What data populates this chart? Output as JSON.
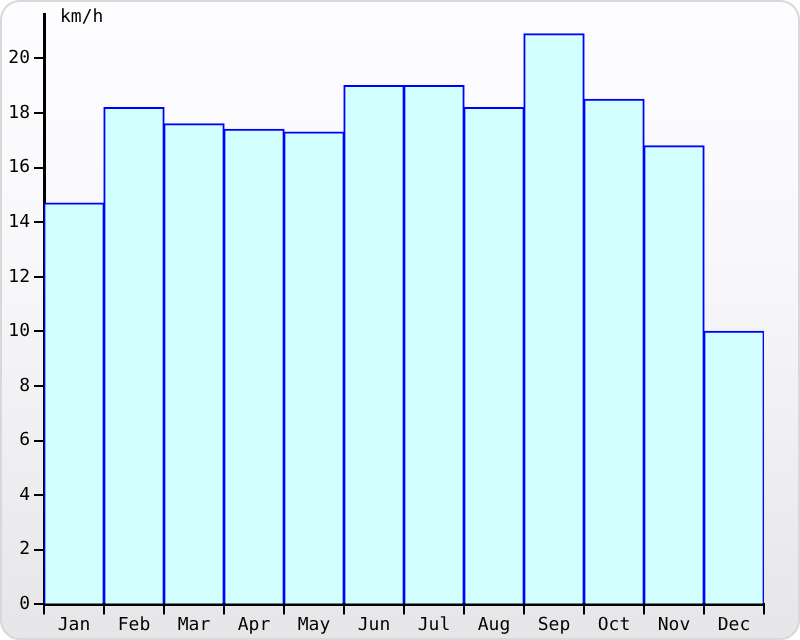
{
  "chart_data": {
    "type": "bar",
    "ylabel": "km/h",
    "categories": [
      "Jan",
      "Feb",
      "Mar",
      "Apr",
      "May",
      "Jun",
      "Jul",
      "Aug",
      "Sep",
      "Oct",
      "Nov",
      "Dec"
    ],
    "values": [
      14.7,
      18.2,
      17.6,
      17.4,
      17.3,
      19.0,
      19.0,
      18.2,
      20.9,
      18.5,
      16.8,
      10.0
    ],
    "color": "#d4ffff",
    "ylim": [
      0,
      21.6
    ],
    "yticks": [
      0,
      2,
      4,
      6,
      8,
      10,
      12,
      14,
      16,
      18,
      20
    ],
    "grid": false,
    "legend": false
  }
}
